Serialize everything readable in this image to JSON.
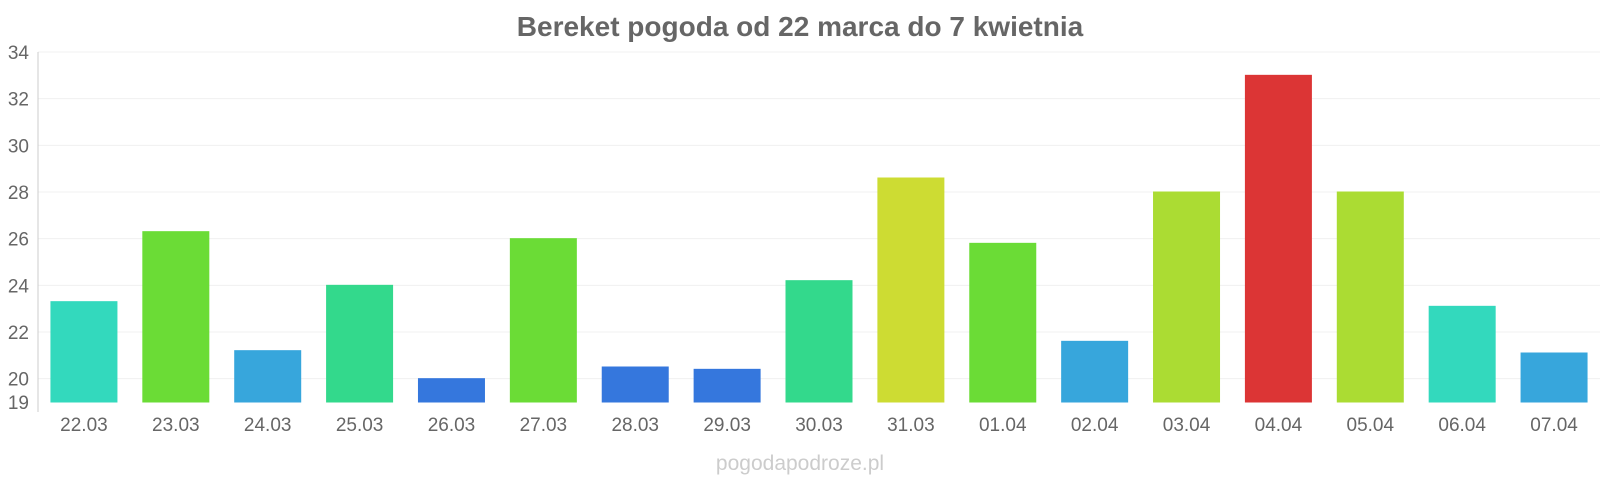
{
  "chart_data": {
    "type": "bar",
    "title": "Bereket pogoda od 22 marca do 7 kwietnia",
    "xlabel": "",
    "ylabel": "",
    "categories": [
      "22.03",
      "23.03",
      "24.03",
      "25.03",
      "26.03",
      "27.03",
      "28.03",
      "29.03",
      "30.03",
      "31.03",
      "01.04",
      "02.04",
      "03.04",
      "04.04",
      "05.04",
      "06.04",
      "07.04"
    ],
    "values": [
      23.3,
      26.3,
      21.2,
      24.0,
      20.0,
      26.0,
      20.5,
      20.4,
      24.2,
      28.6,
      25.8,
      21.6,
      28.0,
      33.0,
      28.0,
      23.1,
      21.1
    ],
    "colors": [
      "#33d9bd",
      "#6bdc36",
      "#37a6dc",
      "#33d98c",
      "#3577dd",
      "#6bdc36",
      "#3577dd",
      "#3577dd",
      "#33d98c",
      "#cddc33",
      "#6bdc36",
      "#37a6dc",
      "#abdc33",
      "#dc3535",
      "#abdc33",
      "#33d9bd",
      "#37a6dc"
    ],
    "ylim": [
      19,
      34
    ],
    "yticks": [
      19,
      20,
      22,
      24,
      26,
      28,
      30,
      32,
      34
    ],
    "grid": true,
    "legend": "none"
  },
  "credit": "pogodapodroze.pl"
}
